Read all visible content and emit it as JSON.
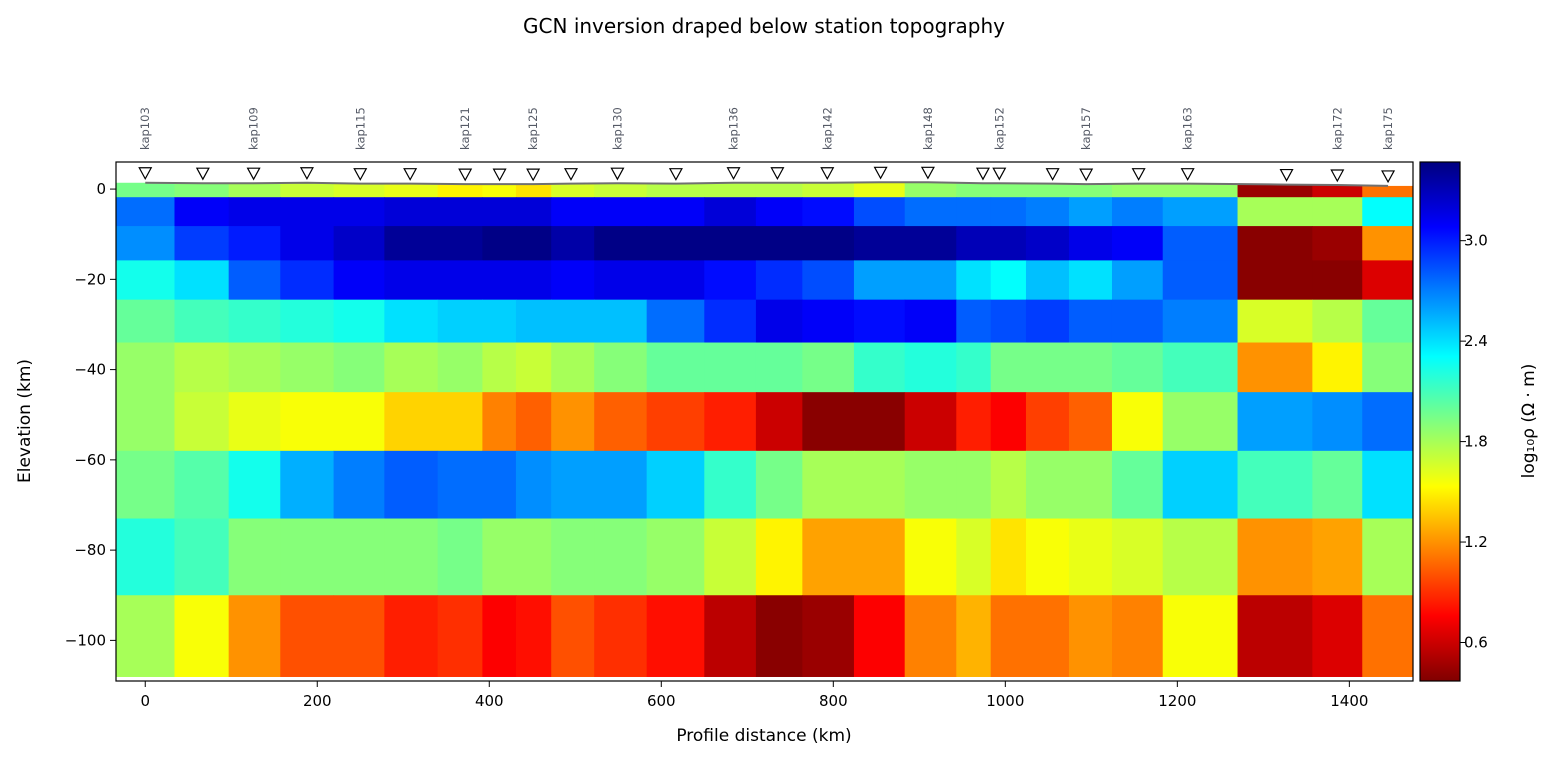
{
  "chart_data": {
    "type": "mesh",
    "title": "GCN inversion draped below station topography",
    "xlabel": "Profile distance (km)",
    "ylabel": "Elevation (km)",
    "colorbar_label": "log₁₀ρ (Ω · m)",
    "colormap": "jet_r",
    "clim": [
      0.37,
      3.47
    ],
    "cticks": [
      0.6,
      1.2,
      1.8,
      2.4,
      {
        "value": 3,
        "label": "3.0"
      }
    ],
    "xlim": [
      -34,
      1474
    ],
    "ylim": [
      -109,
      6
    ],
    "xticks": [
      0,
      200,
      400,
      600,
      800,
      1000,
      1200,
      1400
    ],
    "yticks": [
      {
        "value": 0,
        "label": "0"
      },
      {
        "value": -20,
        "label": "−20"
      },
      {
        "value": -40,
        "label": "−40"
      },
      {
        "value": -60,
        "label": "−60"
      },
      {
        "value": -80,
        "label": "−80"
      },
      {
        "value": -100,
        "label": "−100"
      }
    ],
    "stations": {
      "x": [
        0,
        67,
        126,
        188,
        250,
        308,
        372,
        412,
        451,
        495,
        549,
        617,
        684,
        735,
        793,
        855,
        910,
        974,
        993,
        1055,
        1094,
        1155,
        1212,
        1327,
        1386,
        1445
      ],
      "elevation": [
        1.4,
        1.3,
        1.3,
        1.4,
        1.2,
        1.2,
        1.1,
        1.1,
        1.1,
        1.2,
        1.3,
        1.2,
        1.4,
        1.4,
        1.4,
        1.5,
        1.5,
        1.3,
        1.3,
        1.2,
        1.1,
        1.2,
        1.2,
        1.0,
        0.9,
        0.7
      ],
      "labels": [
        "kap103",
        null,
        "kap109",
        null,
        "kap115",
        null,
        "kap121",
        null,
        "kap125",
        null,
        "kap130",
        null,
        "kap136",
        null,
        "kap142",
        null,
        "kap148",
        null,
        "kap152",
        null,
        "kap157",
        null,
        "kap163",
        null,
        "kap172",
        "kap175"
      ]
    },
    "x_edges": [
      -34,
      34,
      97,
      157,
      219,
      278,
      340,
      392,
      431,
      472,
      522,
      583,
      650,
      710,
      764,
      824,
      883,
      943,
      983,
      1024,
      1074,
      1124,
      1183,
      1270,
      1357,
      1415,
      1474
    ],
    "y_edges": [
      -1.8,
      -8.2,
      -15.8,
      -24.5,
      -34,
      -45,
      -58,
      -73,
      -90,
      -108
    ],
    "values": [
      [
        1.95,
        1.9,
        1.8,
        1.7,
        1.65,
        1.6,
        1.5,
        1.55,
        1.45,
        1.65,
        1.7,
        1.75,
        1.75,
        1.75,
        1.7,
        1.6,
        1.85,
        1.9,
        1.9,
        1.9,
        1.9,
        1.85,
        1.85,
        0.45,
        0.6,
        1.1
      ],
      [
        2.75,
        3.1,
        3.15,
        3.15,
        3.15,
        3.2,
        3.2,
        3.2,
        3.2,
        3.1,
        3.1,
        3.1,
        3.2,
        3.1,
        3.05,
        2.85,
        2.75,
        2.75,
        2.75,
        2.7,
        2.6,
        2.7,
        2.6,
        1.8,
        1.8,
        2.3
      ],
      [
        2.65,
        2.9,
        3.0,
        3.15,
        3.25,
        3.4,
        3.4,
        3.45,
        3.45,
        3.35,
        3.45,
        3.45,
        3.45,
        3.45,
        3.45,
        3.4,
        3.4,
        3.3,
        3.3,
        3.25,
        3.15,
        3.1,
        2.8,
        0.4,
        0.45,
        1.2
      ],
      [
        2.25,
        2.4,
        2.8,
        2.95,
        3.1,
        3.15,
        3.15,
        3.15,
        3.15,
        3.1,
        3.15,
        3.15,
        3.05,
        2.95,
        2.85,
        2.6,
        2.6,
        2.4,
        2.3,
        2.5,
        2.4,
        2.6,
        2.8,
        0.4,
        0.4,
        0.65
      ],
      [
        2.0,
        2.1,
        2.15,
        2.2,
        2.25,
        2.4,
        2.45,
        2.45,
        2.5,
        2.5,
        2.5,
        2.75,
        2.95,
        3.15,
        3.1,
        3.05,
        3.1,
        2.8,
        2.85,
        2.9,
        2.8,
        2.8,
        2.7,
        1.65,
        1.75,
        2.0
      ],
      [
        1.85,
        1.75,
        1.8,
        1.85,
        1.9,
        1.8,
        1.85,
        1.75,
        1.7,
        1.8,
        1.9,
        2.0,
        2.0,
        2.0,
        1.95,
        2.15,
        2.2,
        2.15,
        1.95,
        1.95,
        1.95,
        2.0,
        2.1,
        1.2,
        1.5,
        1.9
      ],
      [
        1.85,
        1.7,
        1.6,
        1.55,
        1.55,
        1.4,
        1.4,
        1.15,
        1.05,
        1.2,
        1.05,
        0.95,
        0.85,
        0.6,
        0.4,
        0.4,
        0.6,
        0.85,
        0.75,
        0.95,
        1.05,
        1.55,
        1.85,
        2.6,
        2.65,
        2.75
      ],
      [
        1.95,
        2.05,
        2.25,
        2.55,
        2.7,
        2.8,
        2.75,
        2.75,
        2.65,
        2.6,
        2.6,
        2.45,
        2.15,
        1.95,
        1.8,
        1.8,
        1.85,
        1.85,
        1.75,
        1.85,
        1.85,
        2.0,
        2.45,
        2.1,
        2.0,
        2.4
      ],
      [
        2.2,
        2.1,
        1.9,
        1.9,
        1.9,
        1.9,
        1.95,
        1.85,
        1.85,
        1.9,
        1.9,
        1.85,
        1.7,
        1.5,
        1.25,
        1.25,
        1.55,
        1.65,
        1.45,
        1.55,
        1.6,
        1.65,
        1.75,
        1.2,
        1.25,
        1.8
      ],
      [
        1.8,
        1.55,
        1.2,
        1.0,
        1.0,
        0.85,
        0.9,
        0.75,
        0.8,
        1.0,
        0.9,
        0.8,
        0.55,
        0.4,
        0.45,
        0.75,
        1.15,
        1.3,
        1.1,
        1.1,
        1.2,
        1.15,
        1.55,
        0.55,
        0.65,
        1.1
      ]
    ]
  }
}
